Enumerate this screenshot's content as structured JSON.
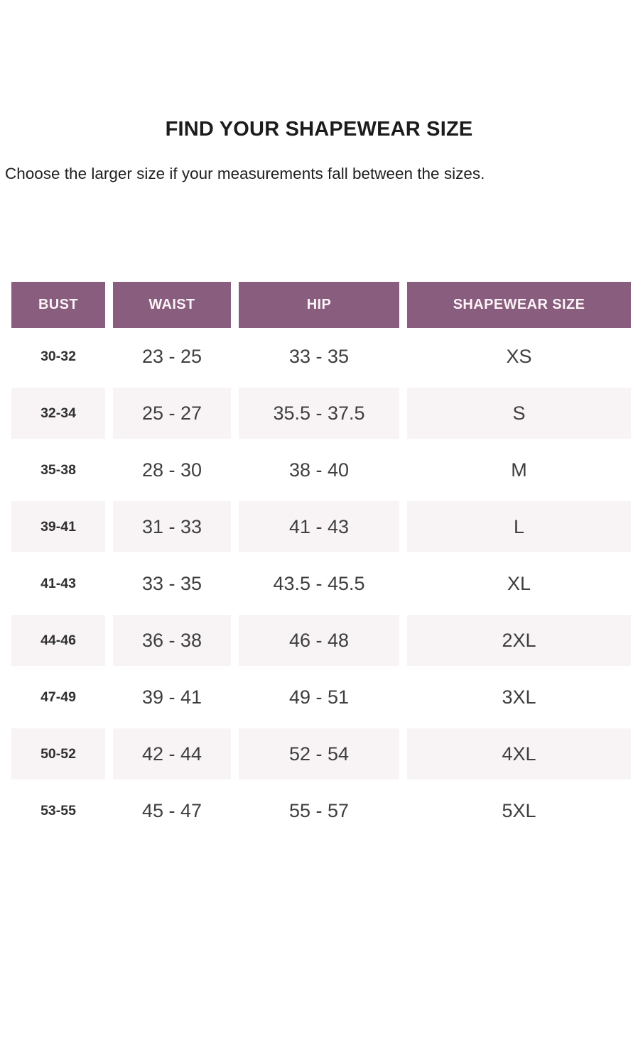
{
  "page": {
    "title": "FIND YOUR SHAPEWEAR SIZE",
    "subtitle": "Choose the larger size if your measurements fall between the sizes."
  },
  "colors": {
    "header_bg": "#895d7d",
    "header_text": "#faf3f7",
    "shaded_row_bg": "#f8f4f6",
    "title_text": "#1c1c1c",
    "value_text": "#3e3e3e"
  },
  "table": {
    "headers": [
      "BUST",
      "WAIST",
      "HIP",
      "SHAPEWEAR SIZE"
    ],
    "rows": [
      {
        "bust": "30-32",
        "waist": "23 - 25",
        "hip": "33 - 35",
        "size": "XS"
      },
      {
        "bust": "32-34",
        "waist": "25 - 27",
        "hip": "35.5 - 37.5",
        "size": "S"
      },
      {
        "bust": "35-38",
        "waist": "28 - 30",
        "hip": "38 - 40",
        "size": "M"
      },
      {
        "bust": "39-41",
        "waist": "31 - 33",
        "hip": "41 - 43",
        "size": "L"
      },
      {
        "bust": "41-43",
        "waist": "33 - 35",
        "hip": "43.5 - 45.5",
        "size": "XL"
      },
      {
        "bust": "44-46",
        "waist": "36 - 38",
        "hip": "46 - 48",
        "size": "2XL"
      },
      {
        "bust": "47-49",
        "waist": "39 - 41",
        "hip": "49 - 51",
        "size": "3XL"
      },
      {
        "bust": "50-52",
        "waist": "42 - 44",
        "hip": "52 - 54",
        "size": "4XL"
      },
      {
        "bust": "53-55",
        "waist": "45 - 47",
        "hip": "55 - 57",
        "size": "5XL"
      }
    ]
  }
}
